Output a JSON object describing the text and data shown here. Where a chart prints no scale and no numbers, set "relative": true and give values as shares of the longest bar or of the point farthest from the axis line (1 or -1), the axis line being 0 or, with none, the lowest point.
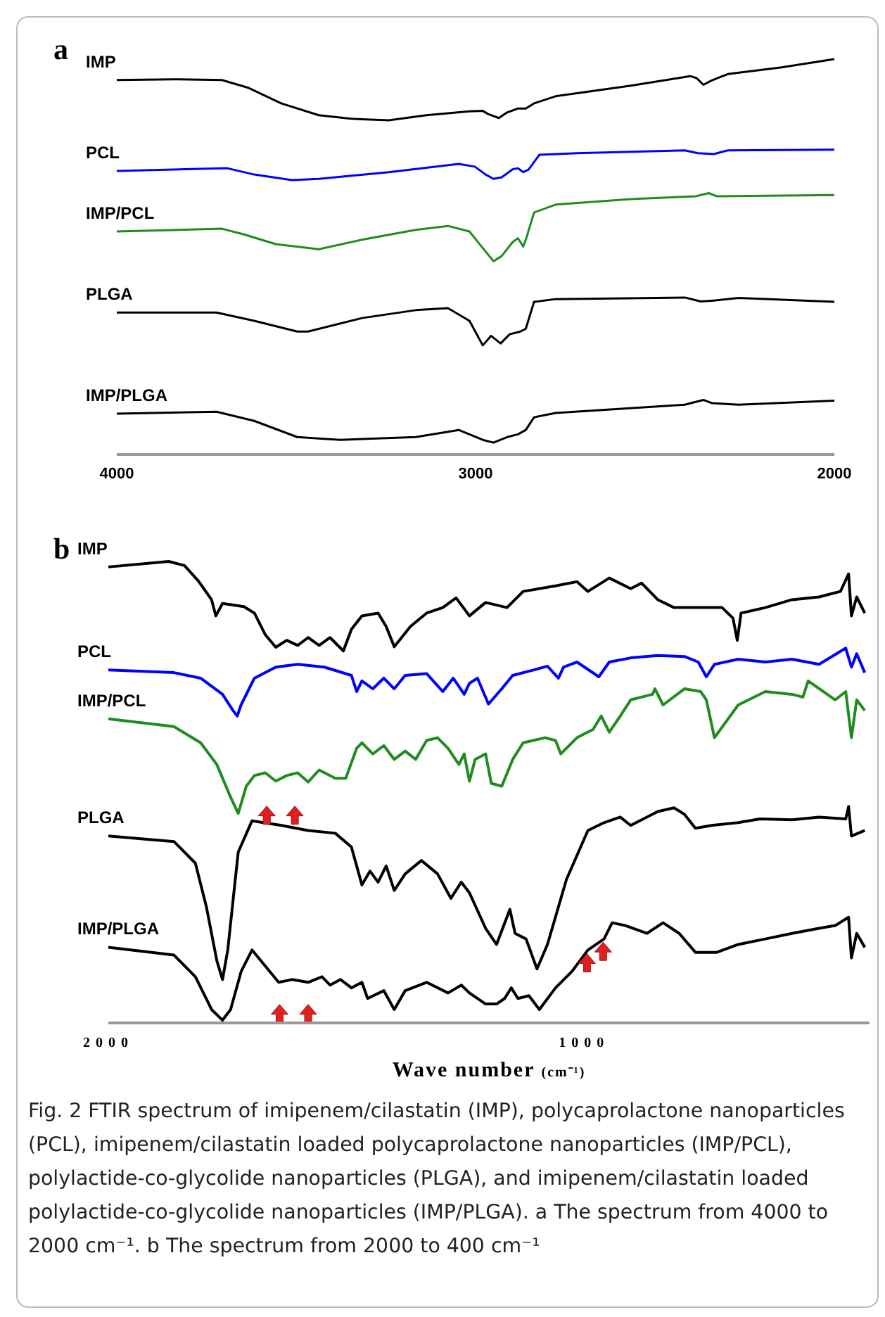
{
  "chart_data": [
    {
      "type": "line",
      "title": "a",
      "relative": true,
      "xlim": [
        4000,
        2000
      ],
      "xticks": [
        4000,
        3000,
        2000
      ],
      "legend": false,
      "series": [
        {
          "name": "IMP",
          "color": "#000000",
          "x": [
            4000,
            3842,
            3707,
            3632,
            3542,
            3437,
            3347,
            3242,
            3137,
            3017,
            2980,
            2965,
            2935,
            2912,
            2882,
            2860,
            2837,
            2777,
            2567,
            2402,
            2384,
            2365,
            2342,
            2320,
            2297,
            2147,
            2000
          ],
          "values": [
            0.947,
            0.949,
            0.947,
            0.927,
            0.888,
            0.858,
            0.849,
            0.845,
            0.858,
            0.868,
            0.869,
            0.861,
            0.851,
            0.865,
            0.875,
            0.875,
            0.888,
            0.906,
            0.933,
            0.957,
            0.952,
            0.935,
            0.946,
            0.954,
            0.962,
            0.979,
            1.0
          ]
        },
        {
          "name": "PCL",
          "color": "#0000ff",
          "x": [
            4000,
            3692,
            3617,
            3512,
            3437,
            3242,
            3047,
            3002,
            2972,
            2950,
            2927,
            2897,
            2882,
            2867,
            2852,
            2822,
            2717,
            2417,
            2380,
            2335,
            2297,
            2000
          ],
          "values": [
            0.717,
            0.724,
            0.708,
            0.694,
            0.697,
            0.714,
            0.735,
            0.728,
            0.708,
            0.697,
            0.701,
            0.721,
            0.724,
            0.714,
            0.721,
            0.758,
            0.762,
            0.769,
            0.762,
            0.76,
            0.769,
            0.771
          ]
        },
        {
          "name": "IMP/PCL",
          "color": "#1e8c1e",
          "x": [
            4000,
            3707,
            3647,
            3557,
            3437,
            3317,
            3167,
            3077,
            3017,
            2987,
            2950,
            2927,
            2897,
            2882,
            2867,
            2860,
            2837,
            2777,
            2567,
            2387,
            2350,
            2327,
            2000
          ],
          "values": [
            0.564,
            0.571,
            0.557,
            0.532,
            0.519,
            0.543,
            0.568,
            0.578,
            0.564,
            0.53,
            0.489,
            0.502,
            0.537,
            0.547,
            0.526,
            0.543,
            0.612,
            0.632,
            0.646,
            0.653,
            0.661,
            0.653,
            0.656
          ]
        },
        {
          "name": "PLGA",
          "color": "#000000",
          "x": [
            4000,
            3722,
            3617,
            3497,
            3467,
            3317,
            3167,
            3077,
            3017,
            2980,
            2957,
            2930,
            2905,
            2875,
            2860,
            2837,
            2777,
            2417,
            2372,
            2327,
            2267,
            2000
          ],
          "values": [
            0.359,
            0.359,
            0.338,
            0.311,
            0.311,
            0.345,
            0.365,
            0.37,
            0.338,
            0.276,
            0.3,
            0.281,
            0.304,
            0.311,
            0.318,
            0.386,
            0.393,
            0.397,
            0.387,
            0.39,
            0.396,
            0.386
          ]
        },
        {
          "name": "IMP/PLGA",
          "color": "#000000",
          "x": [
            4000,
            3722,
            3617,
            3497,
            3377,
            3167,
            3047,
            3017,
            2980,
            2950,
            2912,
            2882,
            2860,
            2837,
            2777,
            2417,
            2365,
            2342,
            2267,
            2000
          ],
          "values": [
            0.103,
            0.108,
            0.085,
            0.044,
            0.037,
            0.044,
            0.062,
            0.051,
            0.037,
            0.03,
            0.044,
            0.051,
            0.062,
            0.094,
            0.105,
            0.126,
            0.138,
            0.13,
            0.126,
            0.136
          ]
        }
      ]
    },
    {
      "type": "line",
      "title": "b",
      "xlabel": "Wave number (cm⁻¹)",
      "relative": true,
      "xlim": [
        2000,
        400
      ],
      "xticks": [
        2000,
        1000
      ],
      "legend": false,
      "series": [
        {
          "name": "IMP",
          "color": "#000000",
          "x": [
            2000,
            1873,
            1840,
            1811,
            1783,
            1774,
            1760,
            1715,
            1693,
            1670,
            1648,
            1625,
            1602,
            1580,
            1557,
            1534,
            1506,
            1489,
            1467,
            1433,
            1416,
            1399,
            1365,
            1331,
            1297,
            1269,
            1241,
            1207,
            1162,
            1128,
            1060,
            1015,
            992,
            947,
            902,
            879,
            845,
            811,
            710,
            687,
            678,
            670,
            619,
            563,
            506,
            461,
            444,
            438,
            427,
            410
          ],
          "values": [
            0.988,
            1.0,
            0.991,
            0.958,
            0.917,
            0.882,
            0.909,
            0.902,
            0.888,
            0.841,
            0.814,
            0.829,
            0.818,
            0.835,
            0.818,
            0.835,
            0.806,
            0.853,
            0.882,
            0.888,
            0.859,
            0.815,
            0.859,
            0.888,
            0.9,
            0.921,
            0.882,
            0.911,
            0.9,
            0.935,
            0.947,
            0.956,
            0.935,
            0.964,
            0.941,
            0.953,
            0.917,
            0.9,
            0.9,
            0.877,
            0.829,
            0.888,
            0.9,
            0.917,
            0.923,
            0.935,
            0.973,
            0.882,
            0.923,
            0.888
          ]
        },
        {
          "name": "PCL",
          "color": "#0000ff",
          "x": [
            2000,
            1862,
            1806,
            1760,
            1738,
            1729,
            1721,
            1693,
            1648,
            1602,
            1546,
            1489,
            1478,
            1467,
            1444,
            1421,
            1399,
            1376,
            1331,
            1297,
            1275,
            1252,
            1241,
            1224,
            1201,
            1173,
            1150,
            1105,
            1077,
            1054,
            1043,
            1015,
            969,
            947,
            902,
            845,
            789,
            760,
            743,
            726,
            676,
            619,
            563,
            506,
            450,
            438,
            427,
            410
          ],
          "values": [
            0.765,
            0.759,
            0.747,
            0.712,
            0.677,
            0.665,
            0.689,
            0.747,
            0.771,
            0.777,
            0.771,
            0.753,
            0.718,
            0.741,
            0.724,
            0.747,
            0.724,
            0.753,
            0.757,
            0.718,
            0.747,
            0.712,
            0.736,
            0.747,
            0.691,
            0.724,
            0.753,
            0.765,
            0.773,
            0.747,
            0.771,
            0.782,
            0.75,
            0.782,
            0.791,
            0.796,
            0.794,
            0.782,
            0.75,
            0.777,
            0.788,
            0.782,
            0.788,
            0.777,
            0.812,
            0.771,
            0.8,
            0.759
          ]
        },
        {
          "name": "IMP/PCL",
          "color": "#1e8c1e",
          "x": [
            2000,
            1862,
            1806,
            1772,
            1743,
            1727,
            1710,
            1693,
            1670,
            1648,
            1625,
            1602,
            1580,
            1557,
            1523,
            1501,
            1478,
            1467,
            1444,
            1421,
            1399,
            1376,
            1354,
            1331,
            1308,
            1286,
            1263,
            1252,
            1241,
            1229,
            1207,
            1195,
            1173,
            1150,
            1128,
            1082,
            1060,
            1049,
            1015,
            981,
            964,
            947,
            924,
            902,
            856,
            851,
            834,
            789,
            755,
            743,
            726,
            676,
            619,
            563,
            540,
            529,
            472,
            450,
            438,
            427,
            410
          ],
          "values": [
            0.659,
            0.642,
            0.607,
            0.56,
            0.489,
            0.454,
            0.513,
            0.536,
            0.542,
            0.524,
            0.536,
            0.542,
            0.522,
            0.548,
            0.53,
            0.53,
            0.595,
            0.607,
            0.583,
            0.601,
            0.571,
            0.589,
            0.571,
            0.612,
            0.618,
            0.595,
            0.56,
            0.583,
            0.524,
            0.571,
            0.583,
            0.519,
            0.513,
            0.571,
            0.607,
            0.618,
            0.612,
            0.583,
            0.618,
            0.636,
            0.665,
            0.63,
            0.665,
            0.7,
            0.712,
            0.724,
            0.689,
            0.724,
            0.718,
            0.7,
            0.618,
            0.689,
            0.718,
            0.712,
            0.706,
            0.741,
            0.7,
            0.718,
            0.618,
            0.7,
            0.677
          ]
        },
        {
          "name": "PLGA",
          "color": "#000000",
          "x": [
            2000,
            1862,
            1817,
            1794,
            1772,
            1760,
            1749,
            1727,
            1698,
            1636,
            1580,
            1523,
            1489,
            1467,
            1450,
            1433,
            1416,
            1399,
            1376,
            1342,
            1308,
            1280,
            1258,
            1241,
            1207,
            1184,
            1156,
            1145,
            1122,
            1099,
            1077,
            1037,
            992,
            958,
            924,
            902,
            845,
            811,
            789,
            766,
            732,
            676,
            630,
            563,
            506,
            450,
            444,
            438,
            410
          ],
          "values": [
            0.405,
            0.393,
            0.346,
            0.252,
            0.135,
            0.094,
            0.158,
            0.37,
            0.438,
            0.428,
            0.417,
            0.411,
            0.381,
            0.299,
            0.329,
            0.305,
            0.34,
            0.287,
            0.323,
            0.352,
            0.323,
            0.27,
            0.305,
            0.282,
            0.205,
            0.17,
            0.246,
            0.194,
            0.182,
            0.117,
            0.17,
            0.311,
            0.417,
            0.434,
            0.446,
            0.428,
            0.458,
            0.466,
            0.452,
            0.422,
            0.428,
            0.434,
            0.442,
            0.44,
            0.446,
            0.442,
            0.469,
            0.405,
            0.417
          ]
        },
        {
          "name": "IMP/PLGA",
          "color": "#000000",
          "x": [
            2000,
            1862,
            1817,
            1783,
            1760,
            1743,
            1721,
            1698,
            1670,
            1642,
            1614,
            1580,
            1551,
            1534,
            1512,
            1489,
            1467,
            1455,
            1421,
            1399,
            1376,
            1331,
            1286,
            1258,
            1241,
            1207,
            1184,
            1167,
            1153,
            1139,
            1116,
            1094,
            1060,
            1026,
            992,
            958,
            941,
            913,
            868,
            834,
            800,
            766,
            721,
            676,
            619,
            563,
            506,
            472,
            444,
            438,
            427,
            410
          ],
          "values": [
            0.164,
            0.147,
            0.1,
            0.029,
            0.006,
            0.029,
            0.111,
            0.158,
            0.123,
            0.088,
            0.094,
            0.088,
            0.1,
            0.082,
            0.094,
            0.076,
            0.088,
            0.053,
            0.07,
            0.029,
            0.07,
            0.088,
            0.065,
            0.082,
            0.065,
            0.041,
            0.041,
            0.053,
            0.076,
            0.053,
            0.059,
            0.029,
            0.076,
            0.111,
            0.158,
            0.182,
            0.217,
            0.211,
            0.194,
            0.217,
            0.194,
            0.153,
            0.153,
            0.17,
            0.182,
            0.194,
            0.205,
            0.211,
            0.229,
            0.141,
            0.194,
            0.164
          ]
        }
      ],
      "annotations": [
        "Fig. 2  FTIR spectrum of imipenem/cilastatin (IMP), polycaprolactone nanoparticles (PCL), imipenem/cilastatin loaded polycaprolactone nanoparticles (IMP/PCL), polylactide-co-glycolide nanoparticles (PLGA), and imipenem/cilastatin loaded polylactide-co-glycolide nanoparticles (IMP/PLGA). a The spectrum from 4000 to 2000 cm⁻¹. b The spectrum from 2000 to 400 cm⁻¹"
      ]
    }
  ]
}
